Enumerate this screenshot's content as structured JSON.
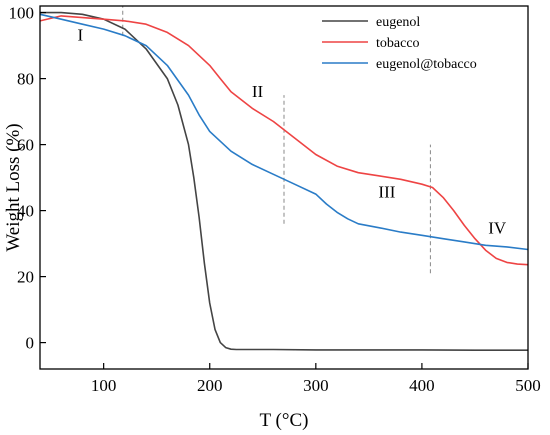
{
  "chart_data": {
    "type": "line",
    "xlabel": "T (°C)",
    "ylabel": "Weight Loss (%)",
    "xlim": [
      40,
      500
    ],
    "ylim": [
      -8,
      102
    ],
    "xticks": [
      100,
      200,
      300,
      400,
      500
    ],
    "yticks": [
      0,
      20,
      40,
      60,
      80,
      100
    ],
    "legend_position": "top-right",
    "series": [
      {
        "name": "eugenol",
        "color": "#444444",
        "x": [
          40,
          60,
          80,
          100,
          120,
          140,
          160,
          170,
          180,
          185,
          190,
          195,
          200,
          205,
          210,
          215,
          220,
          225,
          230,
          240,
          260,
          300,
          350,
          400,
          450,
          500
        ],
        "y": [
          100,
          100,
          99.5,
          98,
          95,
          89,
          80,
          72,
          60,
          50,
          38,
          24,
          12,
          4,
          0,
          -1.5,
          -2,
          -2.1,
          -2.1,
          -2.1,
          -2.1,
          -2.2,
          -2.2,
          -2.2,
          -2.3,
          -2.3
        ]
      },
      {
        "name": "tobacco",
        "color": "#ee4444",
        "x": [
          40,
          60,
          80,
          100,
          120,
          140,
          160,
          180,
          200,
          210,
          220,
          240,
          260,
          280,
          300,
          320,
          340,
          360,
          380,
          400,
          410,
          420,
          430,
          440,
          450,
          460,
          470,
          480,
          490,
          500
        ],
        "y": [
          97.5,
          99,
          98.5,
          98,
          97.5,
          96.5,
          94,
          90,
          84,
          80,
          76,
          71,
          67,
          62,
          57,
          53.5,
          51.5,
          50.5,
          49.5,
          48,
          47,
          44,
          40,
          35.5,
          31.5,
          28,
          25.5,
          24.3,
          23.8,
          23.6
        ]
      },
      {
        "name": "eugenol@tobacco",
        "color": "#2a7cc7",
        "x": [
          40,
          60,
          80,
          100,
          120,
          140,
          160,
          180,
          190,
          200,
          220,
          240,
          260,
          280,
          300,
          310,
          320,
          330,
          340,
          360,
          380,
          400,
          420,
          440,
          460,
          480,
          500
        ],
        "y": [
          99.5,
          98,
          96.5,
          95,
          93,
          90,
          84,
          75,
          69,
          64,
          58,
          54,
          51,
          48,
          45,
          42,
          39.5,
          37.5,
          36,
          34.8,
          33.5,
          32.5,
          31.5,
          30.5,
          29.5,
          29,
          28.2
        ]
      }
    ],
    "dividers": [
      {
        "x": 118,
        "y": [
          93,
          102
        ]
      },
      {
        "x": 270,
        "y": [
          36,
          75
        ]
      },
      {
        "x": 408,
        "y": [
          21,
          60
        ]
      }
    ],
    "annotations": [
      {
        "text": "I",
        "x": 78,
        "y": 91.5
      },
      {
        "text": "II",
        "x": 245,
        "y": 74.5
      },
      {
        "text": "III",
        "x": 367,
        "y": 44
      },
      {
        "text": "IV",
        "x": 471,
        "y": 33
      }
    ]
  }
}
